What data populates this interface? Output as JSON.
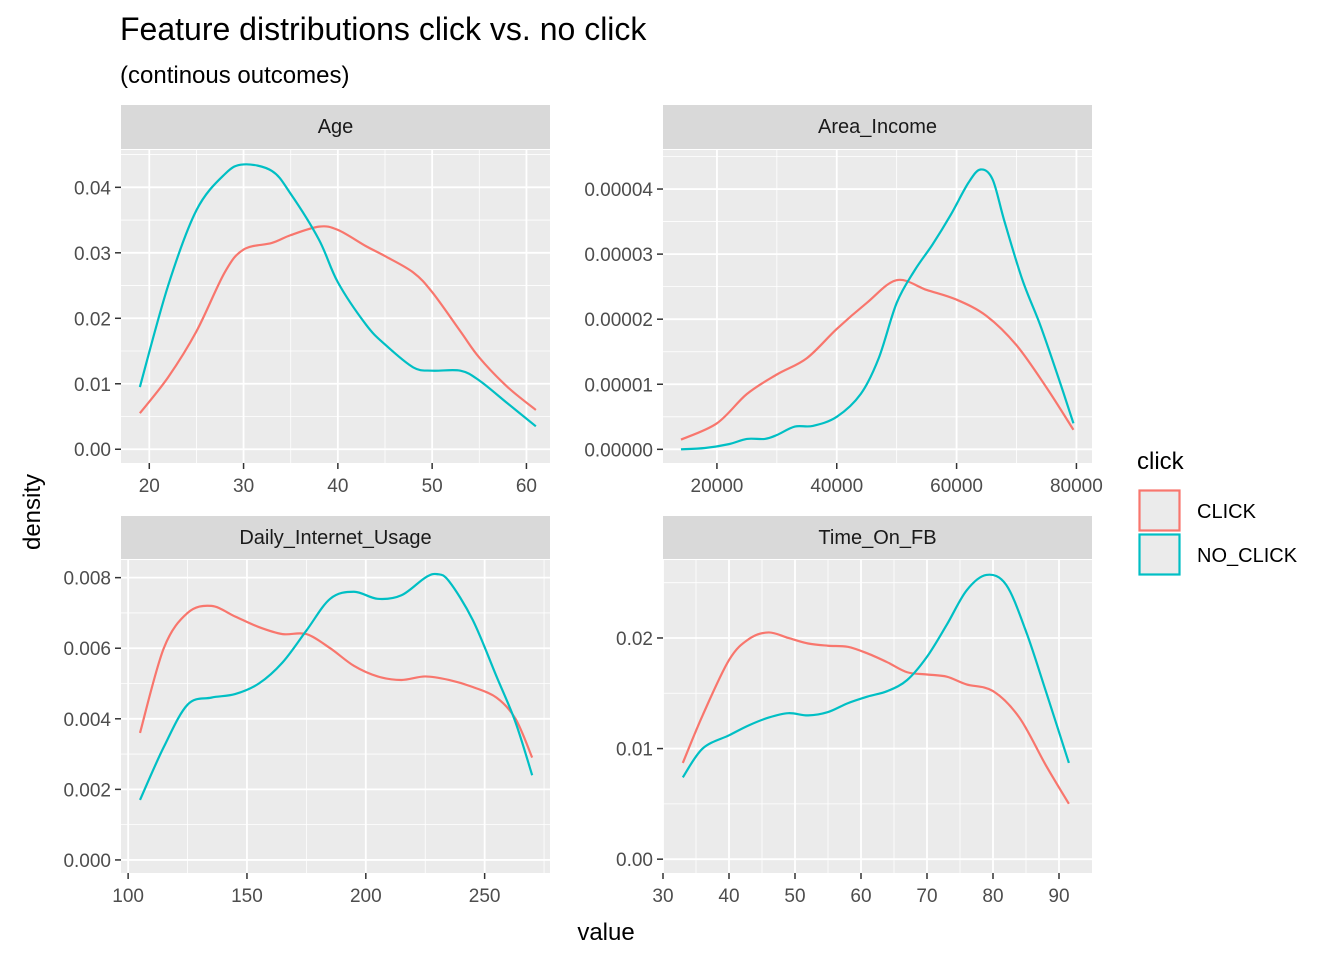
{
  "chart_data": {
    "type": "line",
    "title": "Feature distributions click vs. no click",
    "subtitle": "(continous outcomes)",
    "xlabel": "value",
    "ylabel": "density",
    "legend": {
      "title": "click",
      "placement": "right",
      "entries": [
        {
          "name": "CLICK",
          "color": "#F8766D"
        },
        {
          "name": "NO_CLICK",
          "color": "#00BFC4"
        }
      ]
    },
    "grid": true,
    "panels": [
      {
        "name": "Age",
        "xlim": [
          17,
          62.5
        ],
        "ylim": [
          -0.0021,
          0.0457
        ],
        "xticks": [
          20,
          30,
          40,
          50,
          60
        ],
        "xtick_labels": [
          "20",
          "30",
          "40",
          "50",
          "60"
        ],
        "yticks": [
          0,
          0.01,
          0.02,
          0.03,
          0.04
        ],
        "ytick_labels": [
          "0.00",
          "0.01",
          "0.02",
          "0.03",
          "0.04"
        ],
        "series": [
          {
            "name": "CLICK",
            "x": [
              19,
              22,
              25,
              28,
              30,
              33,
              35,
              38,
              40,
              43,
              45,
              48,
              50,
              53,
              55,
              58,
              61
            ],
            "y": [
              0.0055,
              0.011,
              0.018,
              0.027,
              0.0305,
              0.0315,
              0.0327,
              0.034,
              0.0335,
              0.031,
              0.0295,
              0.027,
              0.024,
              0.018,
              0.014,
              0.0095,
              0.006
            ]
          },
          {
            "name": "NO_CLICK",
            "x": [
              19,
              22,
              25,
              28,
              30,
              33,
              35,
              38,
              40,
              43,
              45,
              48,
              50,
              53,
              55,
              58,
              61
            ],
            "y": [
              0.0095,
              0.025,
              0.0365,
              0.042,
              0.0435,
              0.0425,
              0.039,
              0.032,
              0.0255,
              0.019,
              0.016,
              0.0125,
              0.012,
              0.012,
              0.0105,
              0.007,
              0.0035
            ]
          }
        ]
      },
      {
        "name": "Area_Income",
        "xlim": [
          11000,
          82600
        ],
        "ylim": [
          -2.1e-06,
          4.6e-05
        ],
        "xticks": [
          20000,
          40000,
          60000,
          80000
        ],
        "xtick_labels": [
          "20000",
          "40000",
          "60000",
          "80000"
        ],
        "yticks": [
          0,
          1e-05,
          2e-05,
          3e-05,
          4e-05
        ],
        "ytick_labels": [
          "0.00000",
          "0.00001",
          "0.00002",
          "0.00003",
          "0.00004"
        ],
        "series": [
          {
            "name": "CLICK",
            "x": [
              14000,
              20000,
              25000,
              30000,
              35000,
              40000,
              45000,
              50000,
              55000,
              60000,
              65000,
              70000,
              75000,
              79500
            ],
            "y": [
              1.5e-06,
              4e-06,
              8.5e-06,
              1.15e-05,
              1.4e-05,
              1.85e-05,
              2.25e-05,
              2.6e-05,
              2.45e-05,
              2.3e-05,
              2.05e-05,
              1.6e-05,
              9.5e-06,
              3e-06
            ]
          },
          {
            "name": "NO_CLICK",
            "x": [
              14000,
              18000,
              22000,
              25000,
              28000,
              30000,
              33000,
              36000,
              40000,
              44000,
              47000,
              50000,
              53000,
              56000,
              59000,
              62000,
              64000,
              66000,
              68000,
              71000,
              74000,
              77000,
              79500
            ],
            "y": [
              0.0,
              2e-07,
              8e-07,
              1.6e-06,
              1.6e-06,
              2.2e-06,
              3.5e-06,
              3.6e-06,
              5e-06,
              8.5e-06,
              1.4e-05,
              2.25e-05,
              2.75e-05,
              3.15e-05,
              3.6e-05,
              4.1e-05,
              4.3e-05,
              4.15e-05,
              3.5e-05,
              2.6e-05,
              1.9e-05,
              1.1e-05,
              4e-06
            ]
          }
        ]
      },
      {
        "name": "Daily_Internet_Usage",
        "xlim": [
          97,
          277.5
        ],
        "ylim": [
          -0.00037,
          0.0085
        ],
        "xticks": [
          100,
          150,
          200,
          250
        ],
        "xtick_labels": [
          "100",
          "150",
          "200",
          "250"
        ],
        "yticks": [
          0,
          0.002,
          0.004,
          0.006,
          0.008
        ],
        "ytick_labels": [
          "0.000",
          "0.002",
          "0.004",
          "0.006",
          "0.008"
        ],
        "series": [
          {
            "name": "CLICK",
            "x": [
              105,
              115,
              125,
              135,
              145,
              155,
              165,
              175,
              185,
              195,
              205,
              215,
              225,
              235,
              245,
              255,
              263,
              270
            ],
            "y": [
              0.0036,
              0.006,
              0.007,
              0.0072,
              0.0069,
              0.0066,
              0.0064,
              0.0064,
              0.006,
              0.0055,
              0.0052,
              0.0051,
              0.0052,
              0.0051,
              0.0049,
              0.0046,
              0.004,
              0.0029
            ]
          },
          {
            "name": "NO_CLICK",
            "x": [
              105,
              115,
              125,
              135,
              145,
              155,
              165,
              175,
              185,
              195,
              205,
              215,
              225,
              230,
              235,
              245,
              255,
              263,
              270
            ],
            "y": [
              0.0017,
              0.0032,
              0.0044,
              0.0046,
              0.0047,
              0.005,
              0.0056,
              0.0065,
              0.0074,
              0.0076,
              0.0074,
              0.0075,
              0.008,
              0.0081,
              0.0079,
              0.0068,
              0.0052,
              0.0039,
              0.0024
            ]
          }
        ]
      },
      {
        "name": "Time_On_FB",
        "xlim": [
          30,
          95
        ],
        "ylim": [
          -0.00125,
          0.02705
        ],
        "xticks": [
          30,
          40,
          50,
          60,
          70,
          80,
          90
        ],
        "xtick_labels": [
          "30",
          "40",
          "50",
          "60",
          "70",
          "80",
          "90"
        ],
        "yticks": [
          0,
          0.01,
          0.02
        ],
        "ytick_labels": [
          "0.00",
          "0.01",
          "0.02"
        ],
        "series": [
          {
            "name": "CLICK",
            "x": [
              33,
              36,
              40,
              43,
              46,
              49,
              52,
              55,
              58,
              61,
              64,
              67,
              70,
              73,
              76,
              80,
              84,
              88,
              91.5
            ],
            "y": [
              0.0087,
              0.013,
              0.018,
              0.0199,
              0.0205,
              0.02,
              0.0195,
              0.0193,
              0.0192,
              0.0186,
              0.0178,
              0.0169,
              0.0167,
              0.0165,
              0.0158,
              0.0152,
              0.0128,
              0.0085,
              0.005
            ]
          },
          {
            "name": "NO_CLICK",
            "x": [
              33,
              36,
              40,
              43,
              46,
              49,
              52,
              55,
              58,
              61,
              64,
              67,
              70,
              73,
              76,
              79,
              82,
              85,
              88,
              91.5
            ],
            "y": [
              0.0074,
              0.01,
              0.0112,
              0.0121,
              0.0128,
              0.0132,
              0.013,
              0.0133,
              0.0141,
              0.0147,
              0.0152,
              0.0162,
              0.0183,
              0.0212,
              0.0243,
              0.0257,
              0.0248,
              0.0206,
              0.0152,
              0.0087
            ]
          }
        ]
      }
    ]
  }
}
